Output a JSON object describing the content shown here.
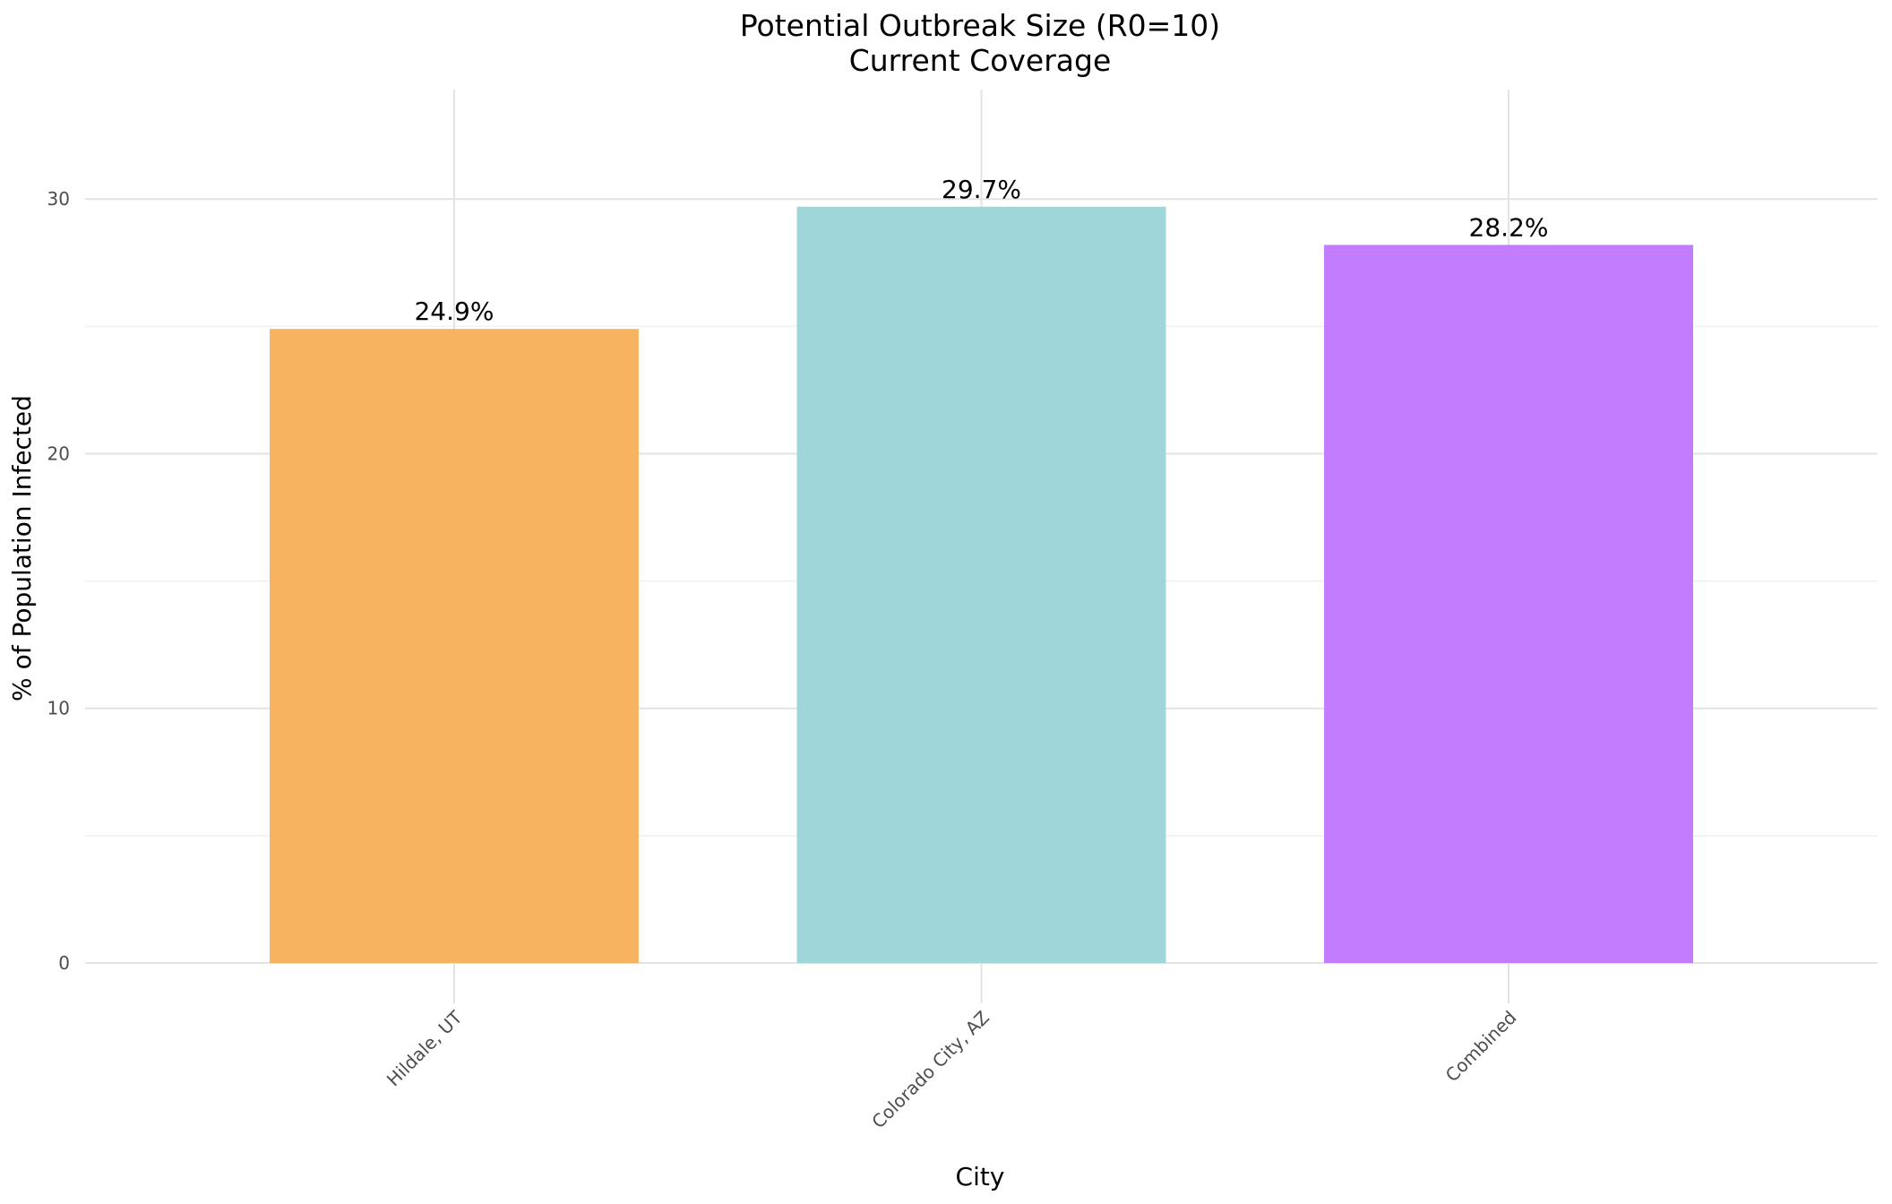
{
  "chart_data": {
    "type": "bar",
    "title": "Potential Outbreak Size (R0=10)",
    "subtitle": "Current Coverage",
    "xlabel": "City",
    "ylabel": "% of Population Infected",
    "categories": [
      "Hildale, UT",
      "Colorado City, AZ",
      "Combined"
    ],
    "values": [
      24.9,
      29.7,
      28.2
    ],
    "data_labels": [
      "24.9%",
      "29.7%",
      "28.2%"
    ],
    "colors": [
      "#F6B461",
      "#9FD6D9",
      "#C47CFE"
    ],
    "yticks": [
      0,
      10,
      20,
      30
    ],
    "ytick_labels": [
      "0",
      "10",
      "20",
      "30"
    ],
    "ylim": [
      0,
      34.3
    ],
    "grid": true,
    "legend": "none"
  }
}
